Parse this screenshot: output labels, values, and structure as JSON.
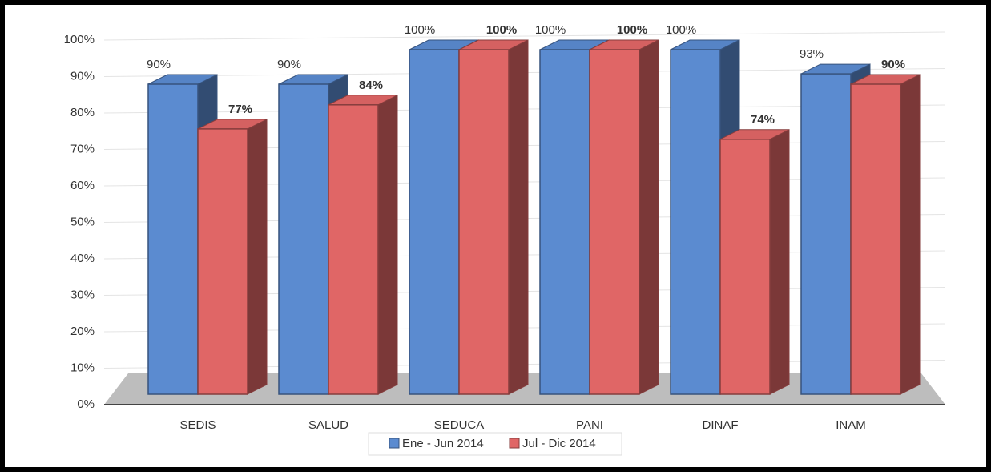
{
  "chart_data": {
    "type": "bar3d",
    "categories": [
      "SEDIS",
      "SALUD",
      "SEDUCA",
      "PANI",
      "DINAF",
      "INAM"
    ],
    "series": [
      {
        "name": "Ene - Jun 2014",
        "color": "#5b8bd0",
        "values": [
          90,
          90,
          100,
          100,
          100,
          93
        ],
        "value_labels": [
          "90%",
          "90%",
          "100%",
          "100%",
          "100%",
          "93%"
        ]
      },
      {
        "name": "Jul - Dic 2014",
        "color": "#e06666",
        "values": [
          77,
          84,
          100,
          100,
          74,
          90
        ],
        "value_labels": [
          "77%",
          "84%",
          "100%",
          "100%",
          "74%",
          "90%"
        ]
      }
    ],
    "ylim": [
      0,
      100
    ],
    "yticks": [
      {
        "value": 0,
        "label": "0%"
      },
      {
        "value": 10,
        "label": "10%"
      },
      {
        "value": 20,
        "label": "20%"
      },
      {
        "value": 30,
        "label": "30%"
      },
      {
        "value": 40,
        "label": "40%"
      },
      {
        "value": 50,
        "label": "50%"
      },
      {
        "value": 60,
        "label": "60%"
      },
      {
        "value": 70,
        "label": "70%"
      },
      {
        "value": 80,
        "label": "80%"
      },
      {
        "value": 90,
        "label": "90%"
      },
      {
        "value": 100,
        "label": "100%"
      }
    ],
    "grid": true,
    "legend": "bottom"
  }
}
